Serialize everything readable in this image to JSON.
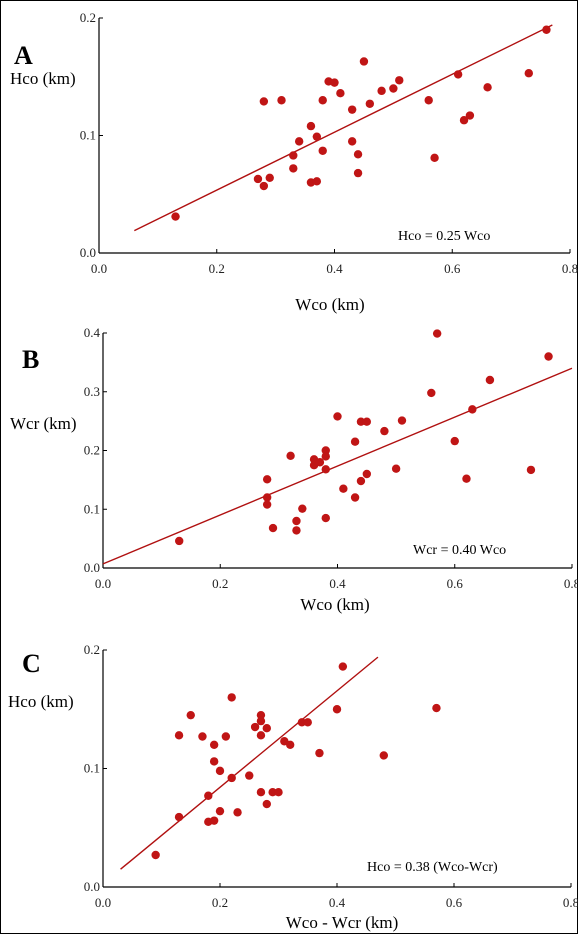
{
  "chart_data": [
    {
      "type": "scatter",
      "panel_label": "A",
      "ylabel": "Hco (km)",
      "xlabel": "Wco (km)",
      "equation": "Hco = 0.25 Wco",
      "xlim": [
        0.0,
        0.8
      ],
      "ylim": [
        0.0,
        0.2
      ],
      "xticks": [
        "0.0",
        "0.2",
        "0.4",
        "0.6",
        "0.8"
      ],
      "yticks": [
        "0.0",
        "0.1",
        "0.2"
      ],
      "xtick_values": [
        0.0,
        0.2,
        0.4,
        0.6,
        0.8
      ],
      "ytick_values": [
        0.0,
        0.1,
        0.2
      ],
      "fit_line": [
        [
          0.06,
          0.019
        ],
        [
          0.77,
          0.194
        ]
      ],
      "x": [
        0.13,
        0.27,
        0.28,
        0.29,
        0.28,
        0.31,
        0.33,
        0.34,
        0.33,
        0.36,
        0.36,
        0.37,
        0.38,
        0.37,
        0.38,
        0.39,
        0.4,
        0.41,
        0.43,
        0.43,
        0.44,
        0.44,
        0.45,
        0.46,
        0.48,
        0.5,
        0.51,
        0.56,
        0.57,
        0.61,
        0.62,
        0.63,
        0.66,
        0.73,
        0.76
      ],
      "y": [
        0.031,
        0.063,
        0.057,
        0.064,
        0.129,
        0.13,
        0.083,
        0.095,
        0.072,
        0.06,
        0.108,
        0.099,
        0.13,
        0.061,
        0.087,
        0.146,
        0.145,
        0.136,
        0.122,
        0.095,
        0.084,
        0.068,
        0.163,
        0.127,
        0.138,
        0.14,
        0.147,
        0.13,
        0.081,
        0.152,
        0.113,
        0.117,
        0.141,
        0.153,
        0.19
      ]
    },
    {
      "type": "scatter",
      "panel_label": "B",
      "ylabel": "Wcr (km)",
      "xlabel": "Wco (km)",
      "equation": "Wcr = 0.40 Wco",
      "xlim": [
        0.0,
        0.8
      ],
      "ylim": [
        0.0,
        0.4
      ],
      "xticks": [
        "0.0",
        "0.2",
        "0.4",
        "0.6",
        "0.8"
      ],
      "yticks": [
        "0.0",
        "0.1",
        "0.2",
        "0.3",
        "0.4"
      ],
      "xtick_values": [
        0.0,
        0.2,
        0.4,
        0.6,
        0.8
      ],
      "ytick_values": [
        0.0,
        0.1,
        0.2,
        0.3,
        0.4
      ],
      "fit_line": [
        [
          0.0,
          0.007
        ],
        [
          0.8,
          0.34
        ]
      ],
      "x": [
        0.13,
        0.28,
        0.28,
        0.28,
        0.29,
        0.32,
        0.33,
        0.34,
        0.33,
        0.36,
        0.36,
        0.37,
        0.38,
        0.38,
        0.38,
        0.38,
        0.4,
        0.41,
        0.43,
        0.43,
        0.44,
        0.44,
        0.45,
        0.45,
        0.48,
        0.5,
        0.51,
        0.56,
        0.57,
        0.6,
        0.62,
        0.63,
        0.66,
        0.73,
        0.76
      ],
      "y": [
        0.046,
        0.151,
        0.12,
        0.108,
        0.068,
        0.191,
        0.08,
        0.101,
        0.064,
        0.175,
        0.185,
        0.18,
        0.2,
        0.085,
        0.19,
        0.168,
        0.258,
        0.135,
        0.12,
        0.215,
        0.249,
        0.148,
        0.249,
        0.16,
        0.233,
        0.169,
        0.251,
        0.298,
        0.399,
        0.216,
        0.152,
        0.27,
        0.32,
        0.167,
        0.36
      ]
    },
    {
      "type": "scatter",
      "panel_label": "C",
      "ylabel": "Hco (km)",
      "xlabel": "Wco - Wcr (km)",
      "equation": "Hco = 0.38 (Wco-Wcr)",
      "xlim": [
        0.0,
        0.8
      ],
      "ylim": [
        0.0,
        0.2
      ],
      "xticks": [
        "0.0",
        "0.2",
        "0.4",
        "0.6",
        "0.8"
      ],
      "yticks": [
        "0.0",
        "0.1",
        "0.2"
      ],
      "xtick_values": [
        0.0,
        0.2,
        0.4,
        0.6,
        0.8
      ],
      "ytick_values": [
        0.0,
        0.1,
        0.2
      ],
      "fit_line": [
        [
          0.03,
          0.015
        ],
        [
          0.47,
          0.194
        ]
      ],
      "x": [
        0.09,
        0.13,
        0.13,
        0.15,
        0.17,
        0.18,
        0.18,
        0.19,
        0.19,
        0.2,
        0.2,
        0.21,
        0.22,
        0.22,
        0.23,
        0.25,
        0.26,
        0.27,
        0.27,
        0.27,
        0.28,
        0.28,
        0.29,
        0.3,
        0.31,
        0.32,
        0.34,
        0.35,
        0.37,
        0.4,
        0.41,
        0.48,
        0.57,
        0.19,
        0.27
      ],
      "y": [
        0.027,
        0.059,
        0.128,
        0.145,
        0.127,
        0.077,
        0.055,
        0.106,
        0.056,
        0.064,
        0.098,
        0.127,
        0.16,
        0.092,
        0.063,
        0.094,
        0.135,
        0.145,
        0.08,
        0.128,
        0.07,
        0.134,
        0.08,
        0.08,
        0.123,
        0.12,
        0.139,
        0.139,
        0.113,
        0.15,
        0.186,
        0.111,
        0.151,
        0.12,
        0.14
      ]
    }
  ],
  "colors": {
    "points": "#c01515",
    "fit_line": "#b01010",
    "axes": "#000000"
  }
}
